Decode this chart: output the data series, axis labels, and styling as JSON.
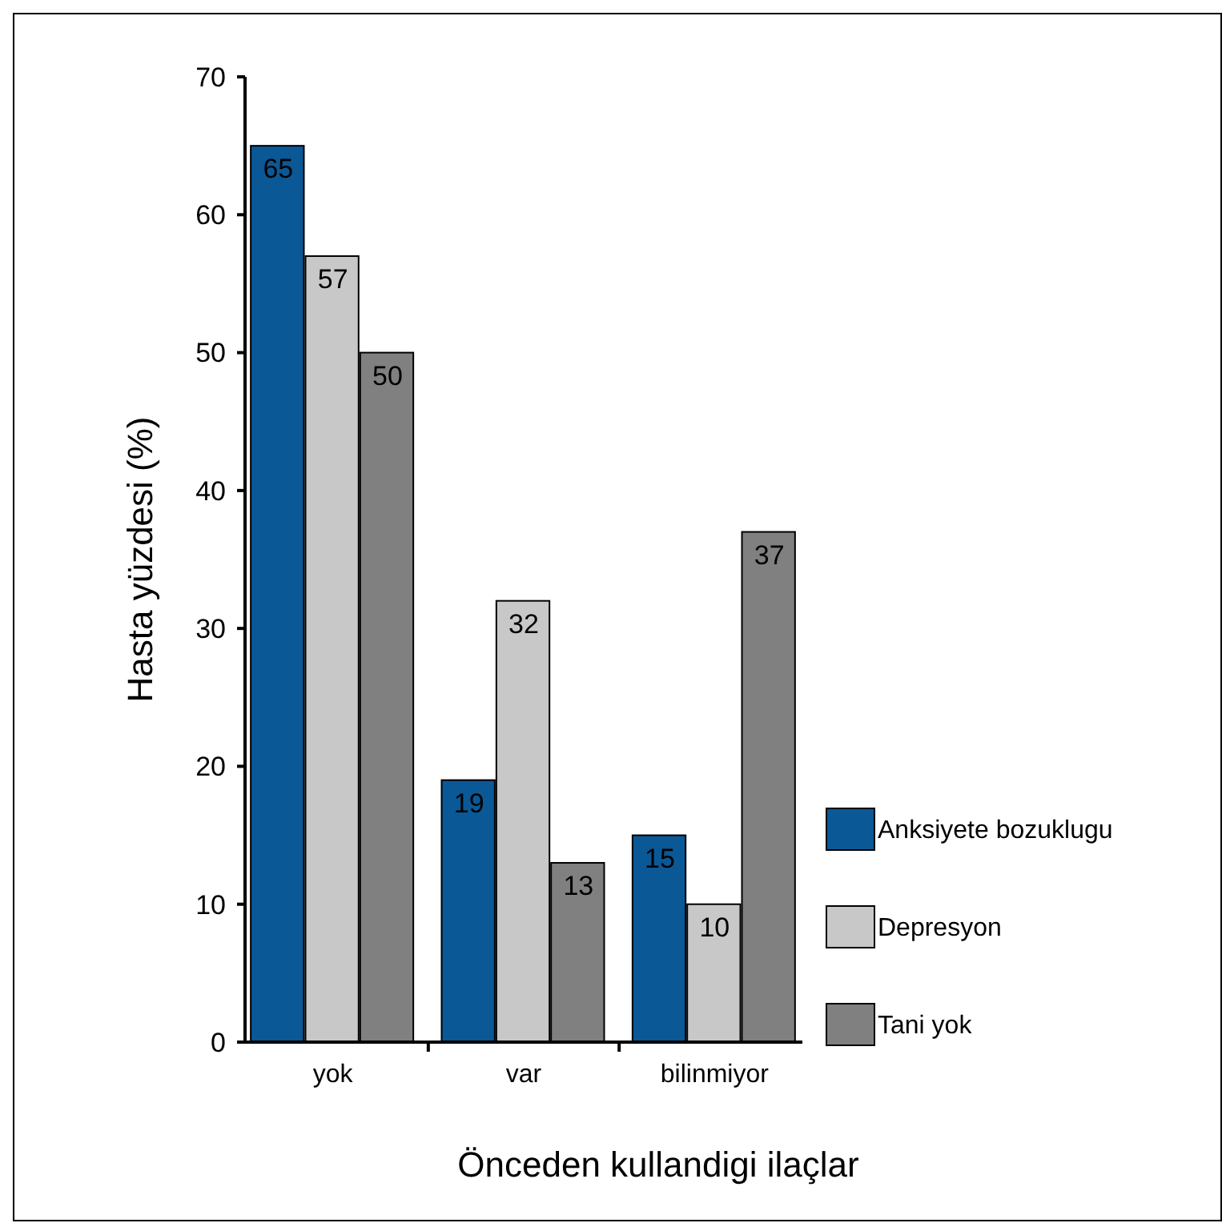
{
  "chart_data": {
    "type": "bar",
    "xlabel": "Önceden kullandigi ilaçlar",
    "ylabel": "Hasta yüzdesi (%)",
    "categories": [
      "yok",
      "var",
      "bilinmiyor"
    ],
    "series": [
      {
        "name": "Anksiyete bozuklugu",
        "color": "#0b5896",
        "values": [
          65,
          19,
          15
        ]
      },
      {
        "name": "Depresyon",
        "color": "#c8c8c8",
        "values": [
          57,
          32,
          10
        ]
      },
      {
        "name": "Tani yok",
        "color": "#808080",
        "values": [
          50,
          13,
          37
        ]
      }
    ],
    "ylim": [
      0,
      70
    ],
    "yticks": [
      0,
      10,
      20,
      30,
      40,
      50,
      60,
      70
    ],
    "grid": false,
    "legend": "right",
    "data_labels": true
  }
}
